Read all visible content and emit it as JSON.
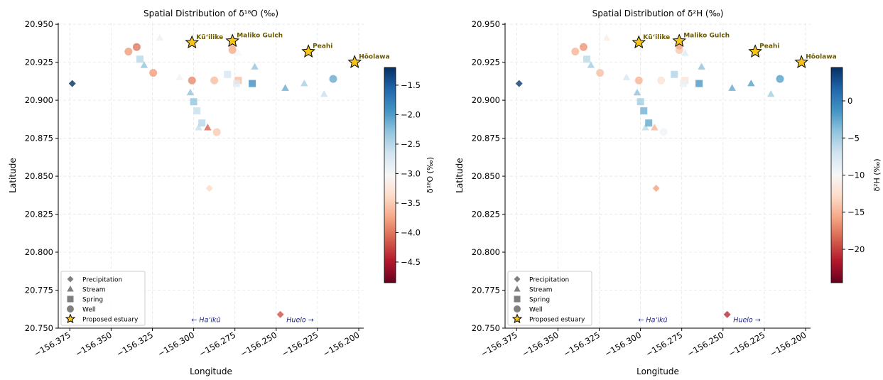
{
  "charts": [
    {
      "type": "scatter",
      "title": "Spatial Distribution of δ¹⁸O (‰)",
      "xlabel": "Longitude",
      "ylabel": "Latitude",
      "colorbar_label": "δ¹⁸O (‰)",
      "xlim": [
        -156.382,
        -156.197
      ],
      "ylim": [
        20.75,
        20.951
      ],
      "xticks": [
        -156.375,
        -156.35,
        -156.325,
        -156.3,
        -156.275,
        -156.25,
        -156.225,
        -156.2
      ],
      "xtick_labels": [
        "−156.375",
        "−156.350",
        "−156.325",
        "−156.300",
        "−156.275",
        "−156.250",
        "−156.225",
        "−156.200"
      ],
      "yticks": [
        20.75,
        20.775,
        20.8,
        20.825,
        20.85,
        20.875,
        20.9,
        20.925,
        20.95
      ],
      "ytick_labels": [
        "20.750",
        "20.775",
        "20.800",
        "20.825",
        "20.850",
        "20.875",
        "20.900",
        "20.925",
        "20.950"
      ],
      "cbar_range": [
        -4.85,
        -1.2
      ],
      "cbar_ticks": [
        -4.5,
        -4.0,
        -3.5,
        -3.0,
        -2.5,
        -2.0,
        -1.5
      ],
      "cbar_tick_labels": [
        "−4.5",
        "−4.0",
        "−3.5",
        "−3.0",
        "−2.5",
        "−2.0",
        "−1.5"
      ],
      "points": [
        {
          "type": "Precipitation",
          "x": -156.3735,
          "y": 20.911,
          "v": -1.2
        },
        {
          "type": "Precipitation",
          "x": -156.2905,
          "y": 20.842,
          "v": -3.4
        },
        {
          "type": "Precipitation",
          "x": -156.2475,
          "y": 20.759,
          "v": -4.2
        },
        {
          "type": "Stream",
          "x": -156.3205,
          "y": 20.941,
          "v": -2.9
        },
        {
          "type": "Stream",
          "x": -156.33,
          "y": 20.923,
          "v": -2.3
        },
        {
          "type": "Stream",
          "x": -156.3085,
          "y": 20.915,
          "v": -3.1
        },
        {
          "type": "Stream",
          "x": -156.302,
          "y": 20.905,
          "v": -2.3
        },
        {
          "type": "Stream",
          "x": -156.297,
          "y": 20.882,
          "v": -2.6
        },
        {
          "type": "Stream",
          "x": -156.2915,
          "y": 20.882,
          "v": -4.1
        },
        {
          "type": "Stream",
          "x": -156.273,
          "y": 20.931,
          "v": -3.0
        },
        {
          "type": "Stream",
          "x": -156.263,
          "y": 20.922,
          "v": -2.3
        },
        {
          "type": "Stream",
          "x": -156.2445,
          "y": 20.908,
          "v": -2.1
        },
        {
          "type": "Stream",
          "x": -156.233,
          "y": 20.911,
          "v": -2.4
        },
        {
          "type": "Stream",
          "x": -156.221,
          "y": 20.904,
          "v": -2.6
        },
        {
          "type": "Spring",
          "x": -156.3325,
          "y": 20.927,
          "v": -2.5
        },
        {
          "type": "Spring",
          "x": -156.3,
          "y": 20.899,
          "v": -2.3
        },
        {
          "type": "Spring",
          "x": -156.298,
          "y": 20.893,
          "v": -2.6
        },
        {
          "type": "Spring",
          "x": -156.295,
          "y": 20.885,
          "v": -2.5
        },
        {
          "type": "Spring",
          "x": -156.2795,
          "y": 20.917,
          "v": -2.7
        },
        {
          "type": "Spring",
          "x": -156.273,
          "y": 20.913,
          "v": -3.6
        },
        {
          "type": "Spring",
          "x": -156.274,
          "y": 20.911,
          "v": -2.8
        },
        {
          "type": "Spring",
          "x": -156.2645,
          "y": 20.911,
          "v": -1.9
        },
        {
          "type": "Well",
          "x": -156.3395,
          "y": 20.932,
          "v": -3.8
        },
        {
          "type": "Well",
          "x": -156.3345,
          "y": 20.935,
          "v": -4.0
        },
        {
          "type": "Well",
          "x": -156.3245,
          "y": 20.918,
          "v": -3.8
        },
        {
          "type": "Well",
          "x": -156.301,
          "y": 20.913,
          "v": -3.9
        },
        {
          "type": "Well",
          "x": -156.2875,
          "y": 20.913,
          "v": -3.6
        },
        {
          "type": "Well",
          "x": -156.286,
          "y": 20.879,
          "v": -3.5
        },
        {
          "type": "Well",
          "x": -156.2765,
          "y": 20.933,
          "v": -3.7
        },
        {
          "type": "Well",
          "x": -156.2765,
          "y": 20.936,
          "v": -3.6
        },
        {
          "type": "Well",
          "x": -156.2155,
          "y": 20.914,
          "v": -2.1
        }
      ],
      "estuaries": [
        {
          "name": "Kū‘ilike",
          "x": -156.301,
          "y": 20.938
        },
        {
          "name": "Maliko Gulch",
          "x": -156.2765,
          "y": 20.939
        },
        {
          "name": "Peahi",
          "x": -156.2305,
          "y": 20.932
        },
        {
          "name": "Hōolawa",
          "x": -156.2025,
          "y": 20.925
        }
      ],
      "direction_labels": [
        {
          "text": "← Ha‘ikū",
          "x": -156.2925,
          "y": 20.754
        },
        {
          "text": "Huelo →",
          "x": -156.2355,
          "y": 20.754
        }
      ]
    },
    {
      "type": "scatter",
      "title": "Spatial Distribution of δ²H (‰)",
      "xlabel": "Longitude",
      "ylabel": "Latitude",
      "colorbar_label": "δ²H (‰)",
      "xlim": [
        -156.382,
        -156.197
      ],
      "ylim": [
        20.75,
        20.951
      ],
      "xticks": [
        -156.375,
        -156.35,
        -156.325,
        -156.3,
        -156.275,
        -156.25,
        -156.225,
        -156.2
      ],
      "xtick_labels": [
        "−156.375",
        "−156.350",
        "−156.325",
        "−156.300",
        "−156.275",
        "−156.250",
        "−156.225",
        "−156.200"
      ],
      "yticks": [
        20.75,
        20.775,
        20.8,
        20.825,
        20.85,
        20.875,
        20.9,
        20.925,
        20.95
      ],
      "ytick_labels": [
        "20.750",
        "20.775",
        "20.800",
        "20.825",
        "20.850",
        "20.875",
        "20.900",
        "20.925",
        "20.950"
      ],
      "cbar_range": [
        -24.5,
        4.5
      ],
      "cbar_ticks": [
        -20,
        -15,
        -10,
        -5,
        0
      ],
      "cbar_tick_labels": [
        "−20",
        "−15",
        "−10",
        "−5",
        "0"
      ],
      "points": [
        {
          "type": "Precipitation",
          "x": -156.3735,
          "y": 20.911,
          "v": 4.0
        },
        {
          "type": "Precipitation",
          "x": -156.2905,
          "y": 20.842,
          "v": -16.0
        },
        {
          "type": "Precipitation",
          "x": -156.2475,
          "y": 20.759,
          "v": -21.0
        },
        {
          "type": "Stream",
          "x": -156.3205,
          "y": 20.941,
          "v": -11.0
        },
        {
          "type": "Stream",
          "x": -156.33,
          "y": 20.923,
          "v": -5.0
        },
        {
          "type": "Stream",
          "x": -156.3085,
          "y": 20.915,
          "v": -7.5
        },
        {
          "type": "Stream",
          "x": -156.302,
          "y": 20.905,
          "v": -4.0
        },
        {
          "type": "Stream",
          "x": -156.297,
          "y": 20.882,
          "v": -6.0
        },
        {
          "type": "Stream",
          "x": -156.2915,
          "y": 20.882,
          "v": -15.0
        },
        {
          "type": "Stream",
          "x": -156.273,
          "y": 20.931,
          "v": -8.0
        },
        {
          "type": "Stream",
          "x": -156.263,
          "y": 20.922,
          "v": -4.0
        },
        {
          "type": "Stream",
          "x": -156.2445,
          "y": 20.908,
          "v": -2.5
        },
        {
          "type": "Stream",
          "x": -156.233,
          "y": 20.911,
          "v": -2.0
        },
        {
          "type": "Stream",
          "x": -156.221,
          "y": 20.904,
          "v": -5.0
        },
        {
          "type": "Spring",
          "x": -156.3325,
          "y": 20.927,
          "v": -6.0
        },
        {
          "type": "Spring",
          "x": -156.3,
          "y": 20.899,
          "v": -5.0
        },
        {
          "type": "Spring",
          "x": -156.298,
          "y": 20.893,
          "v": -3.0
        },
        {
          "type": "Spring",
          "x": -156.295,
          "y": 20.885,
          "v": -2.5
        },
        {
          "type": "Spring",
          "x": -156.2795,
          "y": 20.917,
          "v": -5.5
        },
        {
          "type": "Spring",
          "x": -156.273,
          "y": 20.913,
          "v": -12.0
        },
        {
          "type": "Spring",
          "x": -156.274,
          "y": 20.911,
          "v": -9.0
        },
        {
          "type": "Spring",
          "x": -156.2645,
          "y": 20.911,
          "v": -1.5
        },
        {
          "type": "Well",
          "x": -156.3395,
          "y": 20.932,
          "v": -15.0
        },
        {
          "type": "Well",
          "x": -156.3345,
          "y": 20.935,
          "v": -16.5
        },
        {
          "type": "Well",
          "x": -156.3245,
          "y": 20.918,
          "v": -14.5
        },
        {
          "type": "Well",
          "x": -156.301,
          "y": 20.913,
          "v": -15.0
        },
        {
          "type": "Well",
          "x": -156.2875,
          "y": 20.913,
          "v": -12.0
        },
        {
          "type": "Well",
          "x": -156.286,
          "y": 20.879,
          "v": -9.5
        },
        {
          "type": "Well",
          "x": -156.2765,
          "y": 20.933,
          "v": -14.0
        },
        {
          "type": "Well",
          "x": -156.2765,
          "y": 20.936,
          "v": -15.5
        },
        {
          "type": "Well",
          "x": -156.2155,
          "y": 20.914,
          "v": -2.0
        }
      ],
      "estuaries": [
        {
          "name": "Kū‘ilike",
          "x": -156.301,
          "y": 20.938
        },
        {
          "name": "Maliko Gulch",
          "x": -156.2765,
          "y": 20.939
        },
        {
          "name": "Peahi",
          "x": -156.2305,
          "y": 20.932
        },
        {
          "name": "Hōolawa",
          "x": -156.2025,
          "y": 20.925
        }
      ],
      "direction_labels": [
        {
          "text": "← Ha‘ikū",
          "x": -156.2925,
          "y": 20.754
        },
        {
          "text": "Huelo →",
          "x": -156.2355,
          "y": 20.754
        }
      ]
    }
  ],
  "legend": {
    "items": [
      {
        "label": "Precipitation",
        "marker": "diamond"
      },
      {
        "label": "Stream",
        "marker": "triangle"
      },
      {
        "label": "Spring",
        "marker": "square"
      },
      {
        "label": "Well",
        "marker": "circle"
      },
      {
        "label": "Proposed estuary",
        "marker": "star"
      }
    ]
  },
  "colors": {
    "colormap": [
      "#67001f",
      "#b2182b",
      "#d6604d",
      "#f4a582",
      "#fddbc7",
      "#f7f7f7",
      "#d1e5f0",
      "#92c5de",
      "#4393c3",
      "#2166ac",
      "#053061"
    ],
    "star_fill": "#f5c518",
    "estuary_label": "#6b5a00",
    "direction_label": "#1a237e",
    "grid": "#e6e6e6",
    "legend_marker": "#7f7f7f"
  }
}
